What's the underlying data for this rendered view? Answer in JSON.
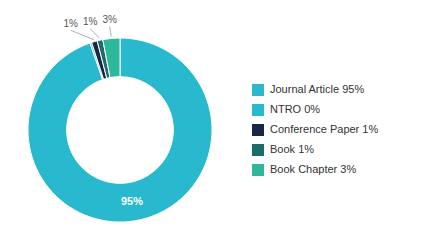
{
  "chart_data": {
    "type": "donut",
    "categories": [
      "Journal Article 95%",
      "NTRO 0%",
      "Conference Paper 1%",
      "Book 1%",
      "Book Chapter 3%"
    ],
    "values": [
      95,
      0.3,
      1,
      1,
      3
    ],
    "value_labels": [
      "95%",
      null,
      "1%",
      "1%",
      "3%"
    ],
    "colors": [
      "#29b9ce",
      "#29b9ce",
      "#1a2744",
      "#1e6b6b",
      "#2db89a"
    ],
    "data_labels": true,
    "legend": "right"
  }
}
